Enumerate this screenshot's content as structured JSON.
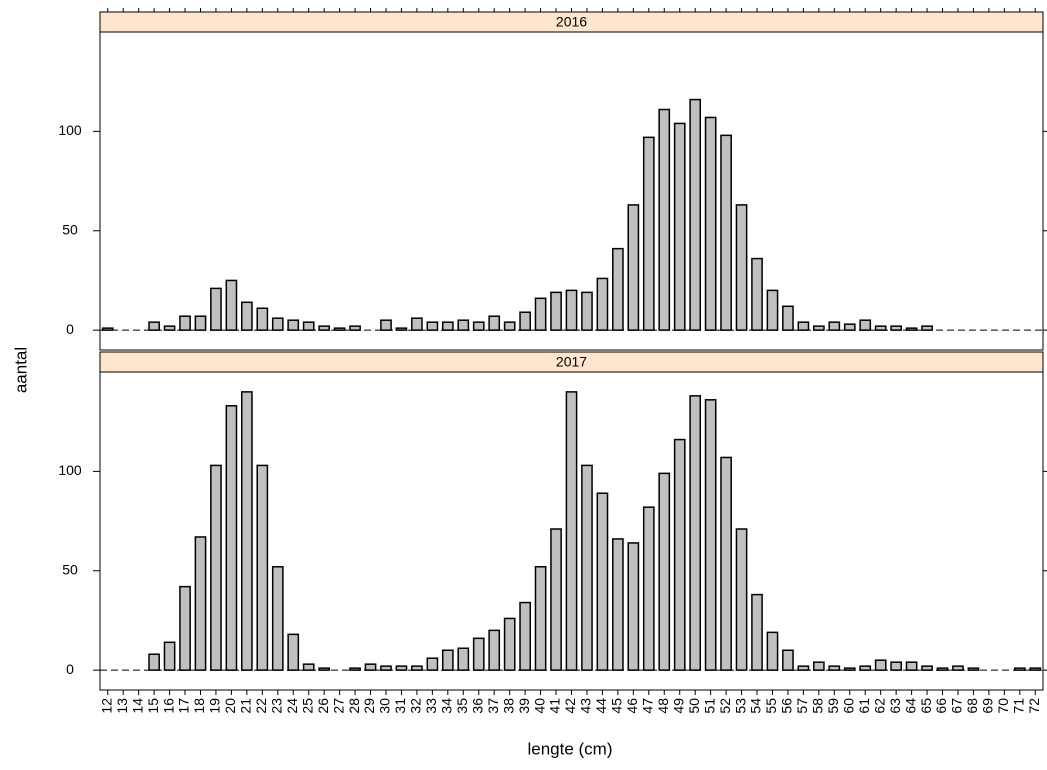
{
  "chart_data": {
    "type": "bar",
    "x_label": "lengte (cm)",
    "y_label": "aantal",
    "color": "#c0c0c0",
    "strip_color": "#ffe5cc",
    "categories": [
      "12",
      "13",
      "14",
      "15",
      "16",
      "17",
      "18",
      "19",
      "20",
      "21",
      "22",
      "23",
      "24",
      "25",
      "26",
      "27",
      "28",
      "29",
      "30",
      "31",
      "32",
      "33",
      "34",
      "35",
      "36",
      "37",
      "38",
      "39",
      "40",
      "41",
      "42",
      "43",
      "44",
      "45",
      "46",
      "47",
      "48",
      "49",
      "50",
      "51",
      "52",
      "53",
      "54",
      "55",
      "56",
      "57",
      "58",
      "59",
      "60",
      "61",
      "62",
      "63",
      "64",
      "65",
      "66",
      "67",
      "68",
      "69",
      "70",
      "71",
      "72"
    ],
    "ylim": [
      -10,
      150
    ],
    "yticks": [
      0,
      50,
      100
    ],
    "panels": [
      {
        "title": "2016",
        "values": [
          1,
          0,
          0,
          4,
          2,
          7,
          7,
          21,
          25,
          14,
          11,
          6,
          5,
          4,
          2,
          1,
          2,
          0,
          5,
          1,
          6,
          4,
          4,
          5,
          4,
          7,
          4,
          9,
          16,
          19,
          20,
          19,
          26,
          41,
          63,
          97,
          111,
          104,
          116,
          107,
          98,
          63,
          36,
          20,
          12,
          4,
          2,
          4,
          3,
          5,
          2,
          2,
          1,
          2,
          0,
          0,
          0,
          0,
          0,
          0,
          0
        ]
      },
      {
        "title": "2017",
        "values": [
          0,
          0,
          0,
          8,
          14,
          42,
          67,
          103,
          133,
          140,
          103,
          52,
          18,
          3,
          1,
          0,
          1,
          3,
          2,
          2,
          2,
          6,
          10,
          11,
          16,
          20,
          26,
          34,
          52,
          71,
          140,
          103,
          89,
          66,
          64,
          82,
          99,
          116,
          138,
          136,
          107,
          71,
          38,
          19,
          10,
          2,
          4,
          2,
          1,
          2,
          5,
          4,
          4,
          2,
          1,
          2,
          1,
          0,
          0,
          1,
          1
        ]
      }
    ]
  }
}
